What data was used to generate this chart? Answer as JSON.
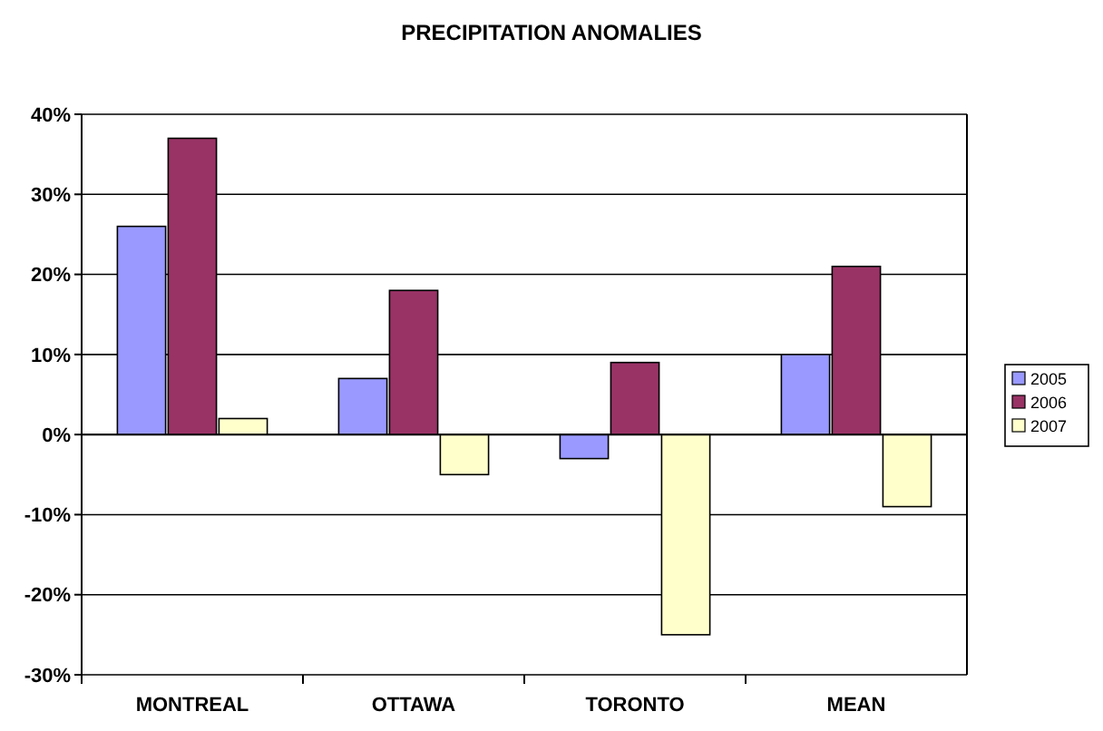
{
  "chart_data": {
    "type": "bar",
    "title": "PRECIPITATION ANOMALIES",
    "categories": [
      "MONTREAL",
      "OTTAWA",
      "TORONTO",
      "MEAN"
    ],
    "series": [
      {
        "name": "2005",
        "color": "#9999ff",
        "values": [
          26,
          7,
          -3,
          10
        ]
      },
      {
        "name": "2006",
        "color": "#993366",
        "values": [
          37,
          18,
          9,
          21
        ]
      },
      {
        "name": "2007",
        "color": "#ffffcc",
        "values": [
          2,
          -5,
          -25,
          -9
        ]
      }
    ],
    "ylim": [
      -30,
      40
    ],
    "yticks": [
      {
        "value": -30,
        "label": "-30%"
      },
      {
        "value": -20,
        "label": "-20%"
      },
      {
        "value": -10,
        "label": "-10%"
      },
      {
        "value": 0,
        "label": "0%"
      },
      {
        "value": 10,
        "label": "10%"
      },
      {
        "value": 20,
        "label": "20%"
      },
      {
        "value": 30,
        "label": "30%"
      },
      {
        "value": 40,
        "label": "40%"
      }
    ],
    "grid": "y",
    "legend": "right"
  }
}
